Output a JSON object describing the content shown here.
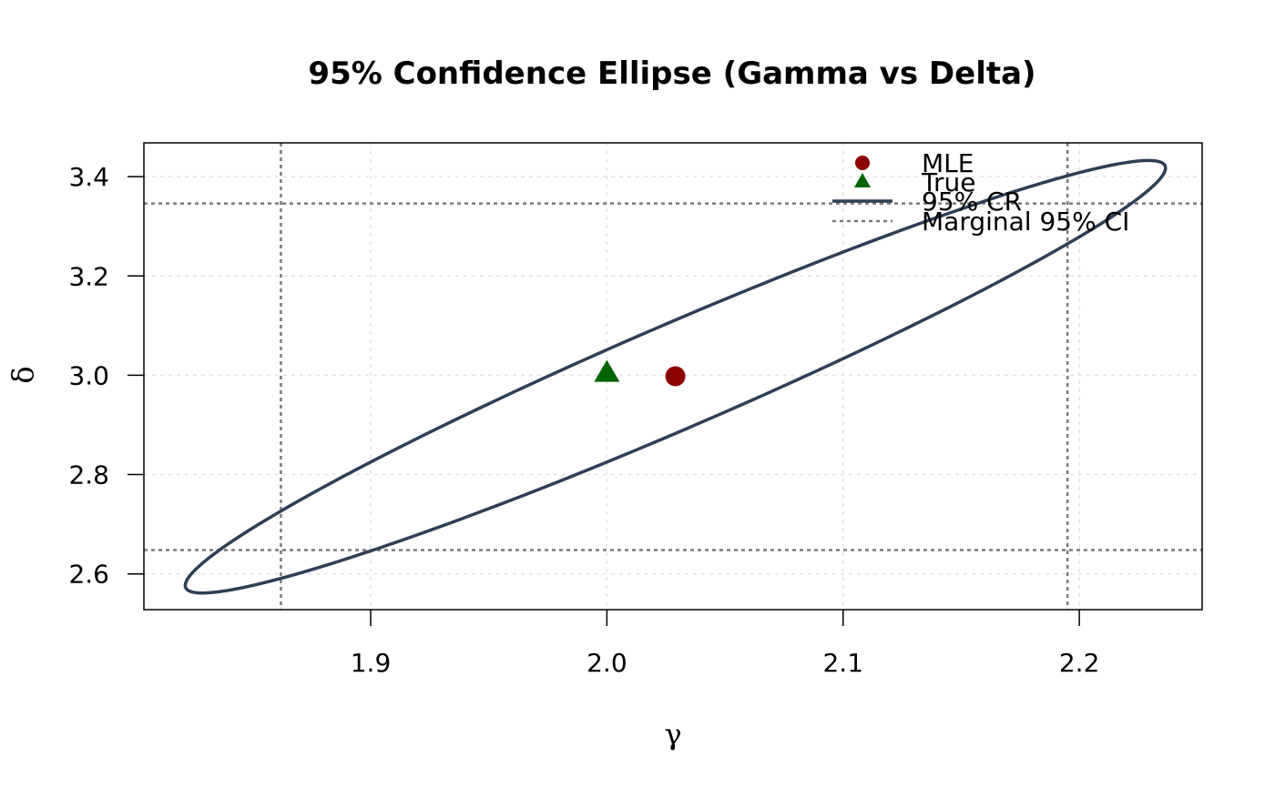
{
  "chart_data": {
    "type": "scatter",
    "title": "95% Confidence Ellipse (Gamma vs Delta)",
    "xlabel": "γ",
    "ylabel": "δ",
    "xlim": [
      1.804,
      2.252
    ],
    "ylim": [
      2.528,
      3.468
    ],
    "x_ticks": [
      "1.9",
      "2.0",
      "2.1",
      "2.2"
    ],
    "y_ticks": [
      "2.6",
      "2.8",
      "3.0",
      "3.2",
      "3.4"
    ],
    "grid": true,
    "legend_position": "top-right",
    "series": [
      {
        "name": "MLE",
        "type": "point",
        "x": 2.029,
        "y": 2.998,
        "color": "#8b0000",
        "marker": "circle"
      },
      {
        "name": "True",
        "type": "point",
        "x": 2.0,
        "y": 3.005,
        "color": "#006400",
        "marker": "triangle"
      },
      {
        "name": "95% CR",
        "type": "ellipse",
        "color": "#2e3f56",
        "center": [
          2.029,
          2.997
        ],
        "gamma_range": [
          1.821,
          2.236
        ],
        "delta_range": [
          2.562,
          3.433
        ]
      },
      {
        "name": "Marginal 95% CI",
        "type": "reference-lines",
        "color": "#7a7a7a",
        "x": [
          1.862,
          2.195
        ],
        "y": [
          2.648,
          3.346
        ]
      }
    ]
  }
}
